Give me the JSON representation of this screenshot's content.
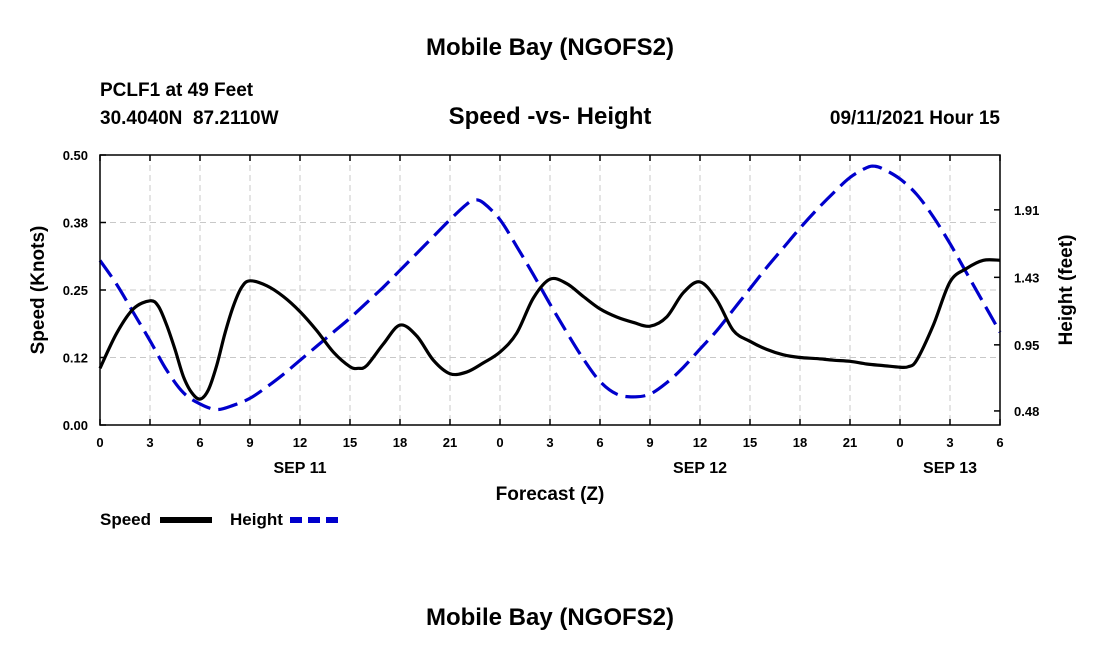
{
  "header": {
    "title": "Mobile Bay (NGOFS2)",
    "station_line": "PCLF1 at 49 Feet",
    "coords_line": "30.4040N  87.2110W",
    "subtitle": "Speed -vs- Height",
    "run_time": "09/11/2021 Hour 15"
  },
  "footer": {
    "title": "Mobile Bay (NGOFS2)"
  },
  "chart_data": {
    "type": "line",
    "title": "Speed -vs- Height",
    "xlabel": "Forecast (Z)",
    "ylabel": "Speed (Knots)",
    "y2label": "Height (feet)",
    "x_range": [
      0,
      54
    ],
    "ylim": [
      0,
      0.5
    ],
    "y2lim": [
      0.38,
      2.3
    ],
    "grid": true,
    "x_ticks": [
      {
        "x": 0,
        "label": "0"
      },
      {
        "x": 3,
        "label": "3"
      },
      {
        "x": 6,
        "label": "6"
      },
      {
        "x": 9,
        "label": "9"
      },
      {
        "x": 12,
        "label": "12"
      },
      {
        "x": 15,
        "label": "15"
      },
      {
        "x": 18,
        "label": "18"
      },
      {
        "x": 21,
        "label": "21"
      },
      {
        "x": 24,
        "label": "0"
      },
      {
        "x": 27,
        "label": "3"
      },
      {
        "x": 30,
        "label": "6"
      },
      {
        "x": 33,
        "label": "9"
      },
      {
        "x": 36,
        "label": "12"
      },
      {
        "x": 39,
        "label": "15"
      },
      {
        "x": 42,
        "label": "18"
      },
      {
        "x": 45,
        "label": "21"
      },
      {
        "x": 48,
        "label": "0"
      },
      {
        "x": 51,
        "label": "3"
      },
      {
        "x": 54,
        "label": "6"
      }
    ],
    "y_ticks": [
      {
        "v": 0.0,
        "label": "0.00"
      },
      {
        "v": 0.125,
        "label": "0.12"
      },
      {
        "v": 0.25,
        "label": "0.25"
      },
      {
        "v": 0.375,
        "label": "0.38"
      },
      {
        "v": 0.5,
        "label": "0.50"
      }
    ],
    "y2_ticks": [
      {
        "v": 0.48,
        "label": "0.48"
      },
      {
        "v": 0.95,
        "label": "0.95"
      },
      {
        "v": 1.43,
        "label": "1.43"
      },
      {
        "v": 1.91,
        "label": "1.91"
      }
    ],
    "date_labels": [
      {
        "x": 12,
        "label": "SEP 11"
      },
      {
        "x": 36,
        "label": "SEP 12"
      },
      {
        "x": 51,
        "label": "SEP 13"
      }
    ],
    "legend": [
      {
        "name": "Speed",
        "color": "#000000",
        "style": "solid"
      },
      {
        "name": "Height",
        "color": "#0000cc",
        "style": "dashed"
      }
    ],
    "series": [
      {
        "name": "Speed",
        "axis": "left",
        "color": "#000000",
        "x": [
          0,
          1,
          2,
          3,
          3.5,
          4,
          4.5,
          5,
          5.5,
          6,
          6.5,
          7,
          7.5,
          8,
          8.5,
          9,
          10,
          11,
          12,
          13,
          14,
          15,
          15.5,
          16,
          17,
          18,
          19,
          20,
          21,
          22,
          23,
          24,
          25,
          26,
          27,
          28,
          29,
          30,
          31,
          32,
          33,
          34,
          35,
          36,
          37,
          38,
          39,
          40,
          41,
          42,
          43,
          44,
          45,
          46,
          47,
          48,
          48.5,
          49,
          50,
          51,
          52,
          53,
          54
        ],
        "values": [
          0.105,
          0.17,
          0.215,
          0.23,
          0.22,
          0.185,
          0.14,
          0.09,
          0.06,
          0.048,
          0.065,
          0.11,
          0.17,
          0.22,
          0.255,
          0.267,
          0.258,
          0.238,
          0.21,
          0.175,
          0.135,
          0.108,
          0.105,
          0.11,
          0.15,
          0.185,
          0.165,
          0.12,
          0.095,
          0.098,
          0.115,
          0.135,
          0.17,
          0.235,
          0.27,
          0.262,
          0.238,
          0.215,
          0.2,
          0.19,
          0.183,
          0.2,
          0.245,
          0.265,
          0.232,
          0.175,
          0.155,
          0.14,
          0.13,
          0.125,
          0.123,
          0.12,
          0.118,
          0.113,
          0.11,
          0.107,
          0.108,
          0.12,
          0.185,
          0.265,
          0.29,
          0.305,
          0.305
        ]
      },
      {
        "name": "Height",
        "axis": "right",
        "color": "#0000cc",
        "x": [
          0,
          1,
          2,
          3,
          4,
          5,
          6,
          7,
          8,
          9,
          10,
          11,
          12,
          13,
          14,
          15,
          16,
          17,
          18,
          19,
          20,
          21,
          22,
          22.5,
          23,
          24,
          25,
          26,
          27,
          28,
          29,
          30,
          31,
          32,
          33,
          34,
          35,
          36,
          37,
          38,
          39,
          40,
          41,
          42,
          43,
          44,
          45,
          46,
          46.5,
          47,
          48,
          49,
          50,
          51,
          52,
          53,
          54
        ],
        "values": [
          1.55,
          1.38,
          1.18,
          0.98,
          0.77,
          0.61,
          0.53,
          0.49,
          0.52,
          0.57,
          0.65,
          0.74,
          0.84,
          0.94,
          1.04,
          1.14,
          1.25,
          1.36,
          1.48,
          1.6,
          1.72,
          1.84,
          1.95,
          1.98,
          1.96,
          1.84,
          1.65,
          1.45,
          1.24,
          1.04,
          0.85,
          0.69,
          0.6,
          0.58,
          0.6,
          0.68,
          0.79,
          0.92,
          1.05,
          1.2,
          1.35,
          1.5,
          1.64,
          1.78,
          1.91,
          2.03,
          2.14,
          2.21,
          2.22,
          2.2,
          2.13,
          2.02,
          1.86,
          1.67,
          1.46,
          1.25,
          1.04
        ]
      }
    ]
  }
}
